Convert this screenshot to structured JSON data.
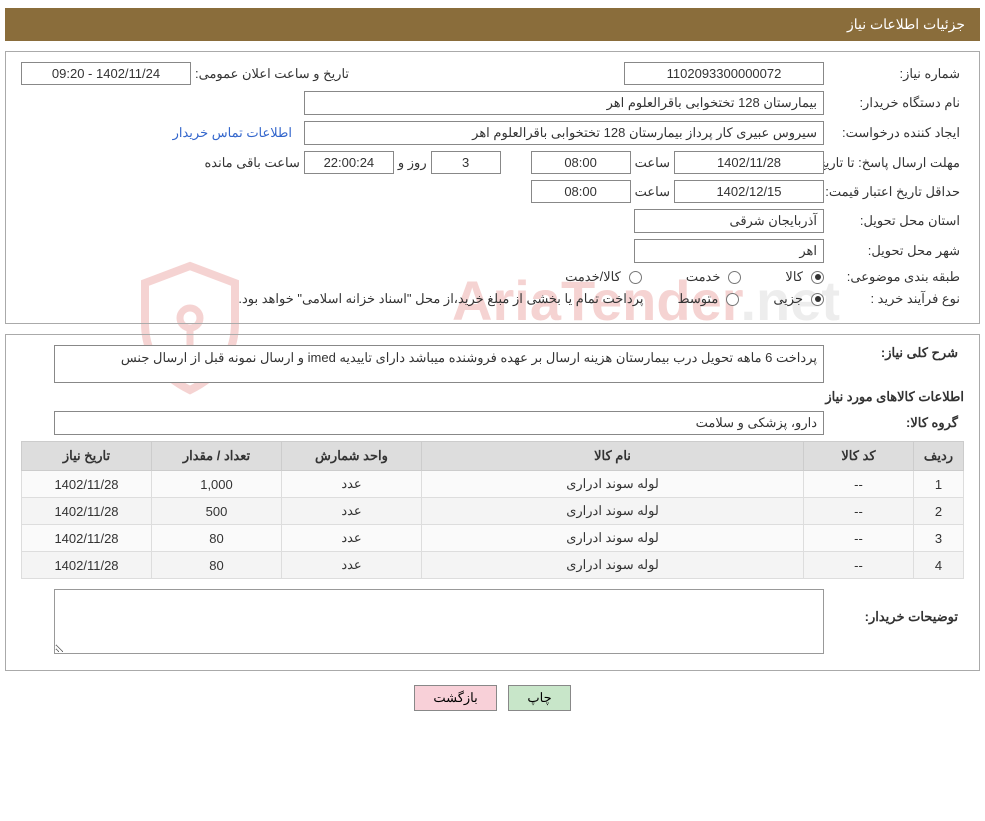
{
  "header": {
    "title": "جزئیات اطلاعات نیاز"
  },
  "form": {
    "need_no_label": "شماره نیاز:",
    "need_no": "1102093300000072",
    "announce_label": "تاریخ و ساعت اعلان عمومی:",
    "announce_value": "1402/11/24 - 09:20",
    "buyer_org_label": "نام دستگاه خریدار:",
    "buyer_org": "بیمارستان 128 تختخوابی باقرالعلوم اهر",
    "requester_label": "ایجاد کننده درخواست:",
    "requester": "سیروس عبیری کار پرداز بیمارستان 128 تختخوابی باقرالعلوم اهر",
    "buyer_contact_link": "اطلاعات تماس خریدار",
    "reply_deadline_label": "مهلت ارسال پاسخ:",
    "until_date_label": "تا تاریخ:",
    "reply_date": "1402/11/28",
    "time_label": "ساعت",
    "reply_time": "08:00",
    "days_and_label": "روز و",
    "remaining_days": "3",
    "countdown": "22:00:24",
    "remaining_label": "ساعت باقی مانده",
    "price_valid_label": "حداقل تاریخ اعتبار قیمت:",
    "price_valid_date": "1402/12/15",
    "price_valid_time": "08:00",
    "deliv_province_label": "استان محل تحویل:",
    "deliv_province": "آذربایجان شرقی",
    "deliv_city_label": "شهر محل تحویل:",
    "deliv_city": "اهر",
    "subject_class_label": "طبقه بندی موضوعی:",
    "radio_goods": "کالا",
    "radio_service": "خدمت",
    "radio_goods_service": "کالا/خدمت",
    "buy_process_label": "نوع فرآیند خرید :",
    "radio_partial": "جزیی",
    "radio_medium": "متوسط",
    "buy_note": "پرداخت تمام یا بخشی از مبلغ خرید،از محل \"اسناد خزانه اسلامی\" خواهد بود."
  },
  "detail": {
    "overall_label": "شرح کلی نیاز:",
    "overall_value": "پرداخت 6 ماهه تحویل درب بیمارستان هزینه ارسال بر عهده فروشنده میباشد دارای تاییدیه imed  و ارسال نمونه قبل از ارسال جنس",
    "items_title": "اطلاعات کالاهای مورد نیاز",
    "group_label": "گروه کالا:",
    "group_value": "دارو، پزشکی و سلامت",
    "buyer_notes_label": "توضیحات خریدار:",
    "buyer_notes_value": ""
  },
  "table": {
    "headers": {
      "row": "ردیف",
      "code": "کد کالا",
      "name": "نام کالا",
      "unit": "واحد شمارش",
      "qty": "تعداد / مقدار",
      "date": "تاریخ نیاز"
    },
    "rows": [
      {
        "row": "1",
        "code": "--",
        "name": "لوله سوند ادراری",
        "unit": "عدد",
        "qty": "1,000",
        "date": "1402/11/28"
      },
      {
        "row": "2",
        "code": "--",
        "name": "لوله سوند ادراری",
        "unit": "عدد",
        "qty": "500",
        "date": "1402/11/28"
      },
      {
        "row": "3",
        "code": "--",
        "name": "لوله سوند ادراری",
        "unit": "عدد",
        "qty": "80",
        "date": "1402/11/28"
      },
      {
        "row": "4",
        "code": "--",
        "name": "لوله سوند ادراری",
        "unit": "عدد",
        "qty": "80",
        "date": "1402/11/28"
      }
    ]
  },
  "buttons": {
    "print": "چاپ",
    "back": "بازگشت"
  },
  "watermark": {
    "text_part1": "AriaTender",
    "text_part2": ".net"
  },
  "colors": {
    "header_bg": "#8a6d3b",
    "border": "#aaaaaa",
    "th_bg": "#dddddd",
    "link": "#3366cc",
    "btn_green": "#c8e6c9",
    "btn_pink": "#f8d0d8",
    "wm_red": "#d9534f"
  }
}
